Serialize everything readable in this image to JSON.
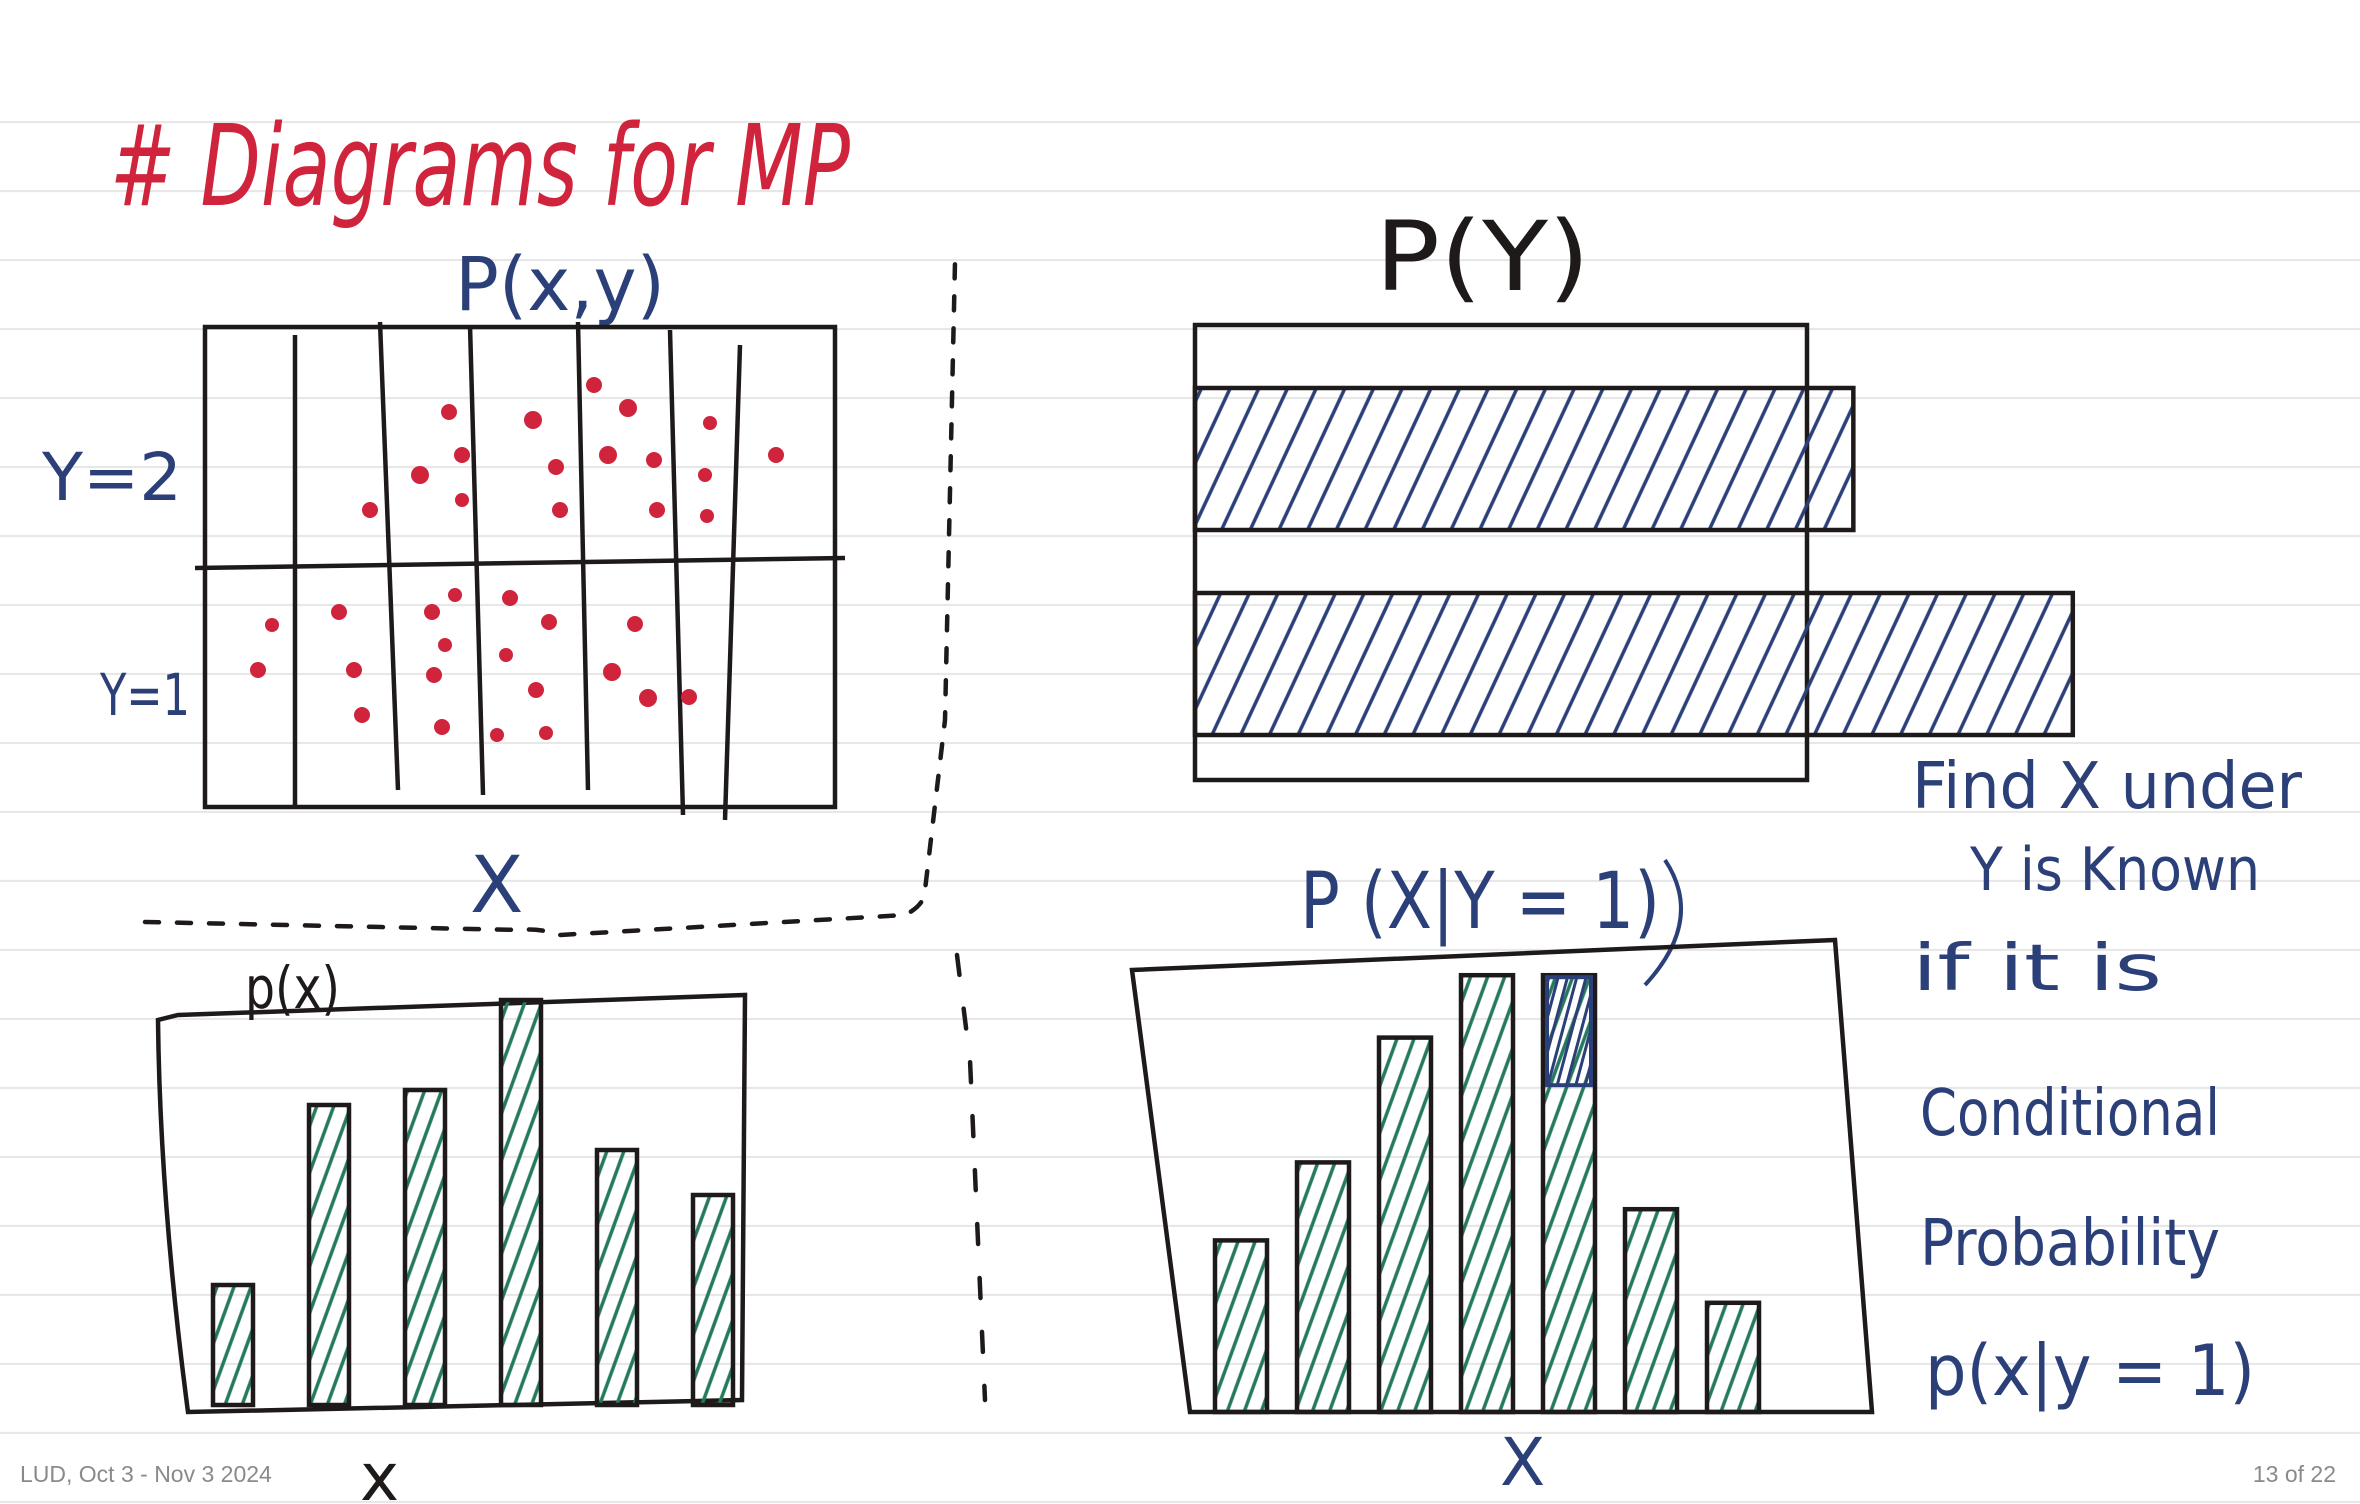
{
  "page": {
    "heading": "# Diagrams for MP",
    "footer": {
      "document": "LUD, Oct 3 - Nov 3 2024",
      "pagination": "13 of 22"
    }
  },
  "diagrams": {
    "joint": {
      "label": "P(x,y)",
      "row_labels": [
        "Y=2",
        "Y=1"
      ],
      "x_axis": "X"
    },
    "marginal_y": {
      "label": "P(Y)"
    },
    "marginal_x": {
      "label": "p(x)",
      "x_axis": "x"
    },
    "conditional": {
      "label": "P (X|Y = 1)",
      "x_axis": "X",
      "note_lines": [
        "Find X under",
        "Y is Known",
        "if it is",
        "Conditional",
        "Probability",
        "p(x|y = 1)"
      ]
    }
  },
  "chart_data": [
    {
      "type": "bar",
      "title": "p(x)",
      "xlabel": "x",
      "values": [
        0.08,
        0.2,
        0.21,
        0.27,
        0.17,
        0.14
      ]
    },
    {
      "type": "bar",
      "title": "P (X|Y = 1)",
      "xlabel": "X",
      "values": [
        0.11,
        0.16,
        0.24,
        0.28,
        0.28,
        0.13,
        0.07
      ],
      "highlight_index": 4
    },
    {
      "type": "bar",
      "title": "P(Y)",
      "orientation": "horizontal",
      "values": [
        0.63,
        0.84
      ]
    }
  ],
  "colors": {
    "ink_black": "#1f1a1a",
    "ink_red": "#d0243d",
    "ink_blue": "#2b3f78",
    "ink_green": "#267a5c"
  }
}
